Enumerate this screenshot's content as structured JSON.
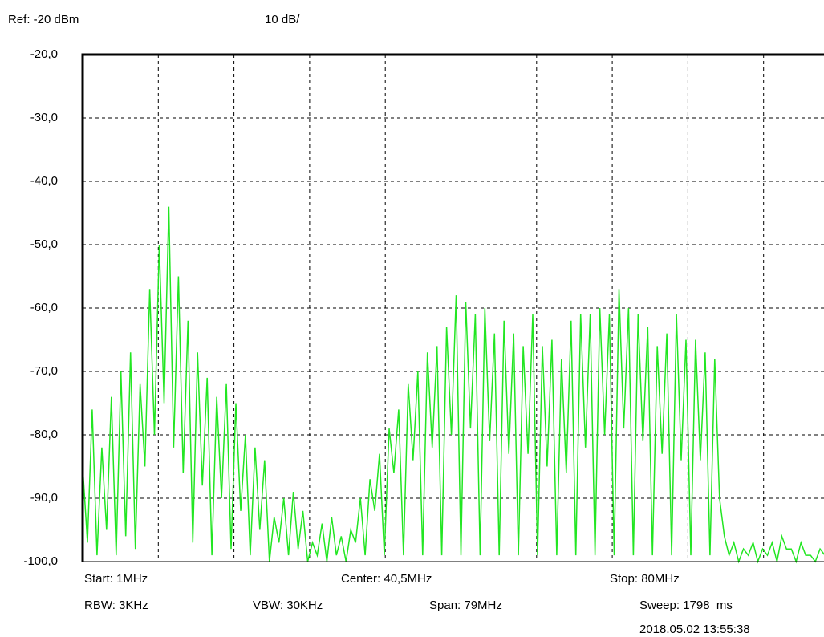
{
  "chart_data": {
    "type": "line",
    "color": "#22e622",
    "annotations": [
      "Ref: -20 dBm",
      "10 dB/",
      "Start: 1MHz",
      "Center: 40,5MHz",
      "Stop: 80MHz",
      "RBW: 3KHz",
      "VBW: 30KHz",
      "Span: 79MHz",
      "Sweep: 1798  ms",
      "2018.05.02 13:55:38"
    ],
    "xlim": [
      1,
      80
    ],
    "xticks": [
      1,
      8.9,
      16.8,
      24.7,
      32.6,
      40.5,
      48.4,
      56.3,
      64.2,
      72.1,
      80
    ],
    "ylim": [
      -100,
      -20
    ],
    "yticks": [
      {
        "value": -20,
        "label": "-20,0"
      },
      {
        "value": -30,
        "label": "-30,0"
      },
      {
        "value": -40,
        "label": "-40,0"
      },
      {
        "value": -50,
        "label": "-50,0"
      },
      {
        "value": -60,
        "label": "-60,0"
      },
      {
        "value": -70,
        "label": "-70,0"
      },
      {
        "value": -80,
        "label": "-80,0"
      },
      {
        "value": -90,
        "label": "-90,0"
      },
      {
        "value": -100,
        "label": "-100,0"
      }
    ],
    "grid": true,
    "x": [
      1,
      1.5,
      2,
      2.5,
      3,
      3.5,
      4,
      4.5,
      5,
      5.5,
      6,
      6.5,
      7,
      7.5,
      8,
      8.5,
      9,
      9.5,
      10,
      10.5,
      11,
      11.5,
      12,
      12.5,
      13,
      13.5,
      14,
      14.5,
      15,
      15.5,
      16,
      16.5,
      17,
      17.5,
      18,
      18.5,
      19,
      19.5,
      20,
      20.5,
      21,
      21.5,
      22,
      22.5,
      23,
      23.5,
      24,
      24.5,
      25,
      25.5,
      26,
      26.5,
      27,
      27.5,
      28,
      28.5,
      29,
      29.5,
      30,
      30.5,
      31,
      31.5,
      32,
      32.5,
      33,
      33.5,
      34,
      34.5,
      35,
      35.5,
      36,
      36.5,
      37,
      37.5,
      38,
      38.5,
      39,
      39.5,
      40,
      40.5,
      41,
      41.5,
      42,
      42.5,
      43,
      43.5,
      44,
      44.5,
      45,
      45.5,
      46,
      46.5,
      47,
      47.5,
      48,
      48.5,
      49,
      49.5,
      50,
      50.5,
      51,
      51.5,
      52,
      52.5,
      53,
      53.5,
      54,
      54.5,
      55,
      55.5,
      56,
      56.5,
      57,
      57.5,
      58,
      58.5,
      59,
      59.5,
      60,
      60.5,
      61,
      61.5,
      62,
      62.5,
      63,
      63.5,
      64,
      64.5,
      65,
      65.5,
      66,
      66.5,
      67,
      67.5,
      68,
      68.5,
      69,
      69.5,
      70,
      70.5,
      71,
      71.5,
      72,
      72.5,
      73,
      73.5,
      74,
      74.5,
      75,
      75.5,
      76,
      76.5,
      77,
      77.5,
      78,
      78.5
    ],
    "values": [
      -85,
      -97,
      -76,
      -99,
      -82,
      -95,
      -74,
      -99,
      -70,
      -96,
      -67,
      -98,
      -72,
      -85,
      -57,
      -80,
      -50,
      -75,
      -44,
      -82,
      -55,
      -86,
      -62,
      -97,
      -67,
      -88,
      -71,
      -99,
      -74,
      -90,
      -72,
      -98,
      -75,
      -92,
      -80,
      -99,
      -82,
      -95,
      -84,
      -100,
      -93,
      -97,
      -90,
      -99,
      -89,
      -98,
      -92,
      -100,
      -97,
      -99,
      -94,
      -100,
      -93,
      -99,
      -96,
      -100,
      -95,
      -97,
      -90,
      -99,
      -87,
      -92,
      -83,
      -99,
      -79,
      -86,
      -76,
      -99,
      -72,
      -84,
      -70,
      -99,
      -67,
      -82,
      -66,
      -99,
      -63,
      -80,
      -58,
      -99,
      -59,
      -79,
      -61,
      -99,
      -60,
      -81,
      -64,
      -99,
      -62,
      -83,
      -64,
      -99,
      -66,
      -83,
      -61,
      -99,
      -66,
      -85,
      -65,
      -99,
      -68,
      -86,
      -62,
      -99,
      -61,
      -82,
      -61,
      -99,
      -60,
      -80,
      -61,
      -99,
      -57,
      -79,
      -60,
      -99,
      -61,
      -81,
      -63,
      -99,
      -66,
      -83,
      -64,
      -99,
      -61,
      -84,
      -65,
      -99,
      -65,
      -84,
      -67,
      -99,
      -68,
      -90,
      -96,
      -99,
      -97,
      -100,
      -98,
      -99,
      -97,
      -100,
      -98,
      -99,
      -97,
      -100,
      -96,
      -98,
      -98,
      -100,
      -97,
      -99,
      -99,
      -100,
      -98,
      -99
    ]
  }
}
